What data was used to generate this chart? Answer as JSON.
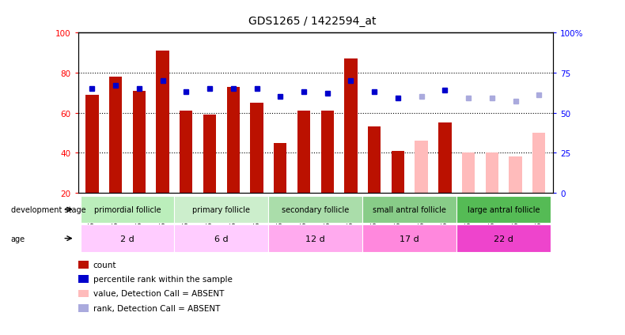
{
  "title": "GDS1265 / 1422594_at",
  "samples": [
    "GSM75708",
    "GSM75710",
    "GSM75712",
    "GSM75714",
    "GSM74060",
    "GSM74061",
    "GSM74062",
    "GSM74063",
    "GSM75715",
    "GSM75717",
    "GSM75719",
    "GSM75720",
    "GSM75722",
    "GSM75724",
    "GSM75725",
    "GSM75727",
    "GSM75729",
    "GSM75730",
    "GSM75732",
    "GSM75733"
  ],
  "bar_values": [
    69,
    78,
    71,
    91,
    61,
    59,
    73,
    65,
    45,
    61,
    61,
    87,
    53,
    41,
    46,
    55,
    40,
    40,
    38,
    50
  ],
  "bar_absent": [
    false,
    false,
    false,
    false,
    false,
    false,
    false,
    false,
    false,
    false,
    false,
    false,
    false,
    false,
    true,
    false,
    true,
    true,
    true,
    true
  ],
  "rank_values": [
    65,
    67,
    65,
    70,
    63,
    65,
    65,
    65,
    60,
    63,
    62,
    70,
    63,
    59,
    60,
    64,
    59,
    59,
    57,
    61
  ],
  "rank_absent": [
    false,
    false,
    false,
    false,
    false,
    false,
    false,
    false,
    false,
    false,
    false,
    false,
    false,
    false,
    true,
    false,
    true,
    true,
    true,
    true
  ],
  "groups": [
    {
      "label": "primordial follicle",
      "start": 0,
      "end": 4
    },
    {
      "label": "primary follicle",
      "start": 4,
      "end": 8
    },
    {
      "label": "secondary follicle",
      "start": 8,
      "end": 12
    },
    {
      "label": "small antral follicle",
      "start": 12,
      "end": 16
    },
    {
      "label": "large antral follicle",
      "start": 16,
      "end": 20
    }
  ],
  "ages": [
    {
      "label": "2 d",
      "start": 0,
      "end": 4
    },
    {
      "label": "6 d",
      "start": 4,
      "end": 8
    },
    {
      "label": "12 d",
      "start": 8,
      "end": 12
    },
    {
      "label": "17 d",
      "start": 12,
      "end": 16
    },
    {
      "label": "22 d",
      "start": 16,
      "end": 20
    }
  ],
  "dev_colors": [
    "#bbeebb",
    "#cceecc",
    "#aaddaa",
    "#88cc88",
    "#55bb55"
  ],
  "age_colors": [
    "#ffccff",
    "#ffccff",
    "#ffaaee",
    "#ff88dd",
    "#ee44cc"
  ],
  "ymin": 20,
  "ymax": 100,
  "bar_color_present": "#bb1100",
  "bar_color_absent": "#ffbbbb",
  "rank_color_present": "#0000cc",
  "rank_color_absent": "#aaaadd",
  "rank_scale_min": 0,
  "rank_scale_max": 100,
  "legend": [
    {
      "color": "#bb1100",
      "label": "count"
    },
    {
      "color": "#0000cc",
      "label": "percentile rank within the sample"
    },
    {
      "color": "#ffbbbb",
      "label": "value, Detection Call = ABSENT"
    },
    {
      "color": "#aaaadd",
      "label": "rank, Detection Call = ABSENT"
    }
  ]
}
